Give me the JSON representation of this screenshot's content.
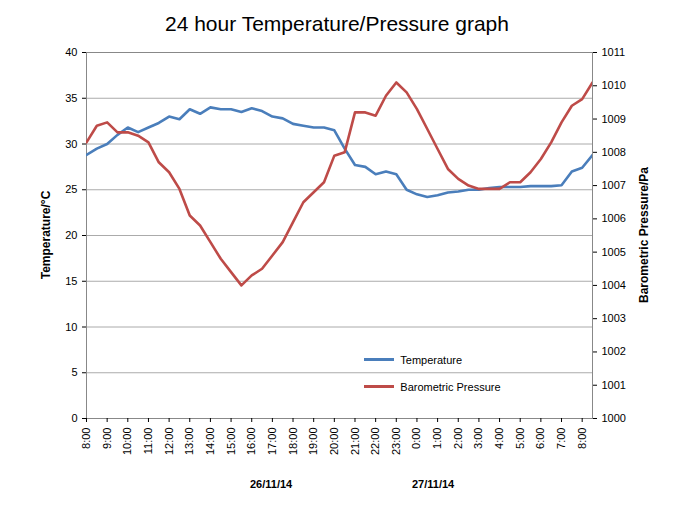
{
  "chart_data": {
    "type": "line",
    "title": "24 hour Temperature/Pressure graph",
    "y_label": "Temperature/°C",
    "y2_label": "Barometric Pressure/Pa",
    "annotations": [
      "26/11/14",
      "27/11/14"
    ],
    "x": [
      0,
      0.5,
      1,
      1.5,
      2,
      2.5,
      3,
      3.5,
      4,
      4.5,
      5,
      5.5,
      6,
      6.5,
      7,
      7.5,
      8,
      8.5,
      9,
      9.5,
      10,
      10.5,
      11,
      11.5,
      12,
      12.5,
      13,
      13.5,
      14,
      14.5,
      15,
      15.5,
      16,
      16.5,
      17,
      17.5,
      18,
      18.5,
      19,
      19.5,
      20,
      20.5,
      21,
      21.5,
      22,
      22.5,
      23,
      23.5,
      24,
      24.5
    ],
    "xlim": [
      0,
      24.5
    ],
    "xticks": [
      {
        "value": 0,
        "label": "8:00"
      },
      {
        "value": 1,
        "label": "9:00"
      },
      {
        "value": 2,
        "label": "10:00"
      },
      {
        "value": 3,
        "label": "11:00"
      },
      {
        "value": 4,
        "label": "12:00"
      },
      {
        "value": 5,
        "label": "13:00"
      },
      {
        "value": 6,
        "label": "14:00"
      },
      {
        "value": 7,
        "label": "15:00"
      },
      {
        "value": 8,
        "label": "16:00"
      },
      {
        "value": 9,
        "label": "17:00"
      },
      {
        "value": 10,
        "label": "18:00"
      },
      {
        "value": 11,
        "label": "19:00"
      },
      {
        "value": 12,
        "label": "20:00"
      },
      {
        "value": 13,
        "label": "21:00"
      },
      {
        "value": 14,
        "label": "22:00"
      },
      {
        "value": 15,
        "label": "23:00"
      },
      {
        "value": 16,
        "label": "0:00"
      },
      {
        "value": 17,
        "label": "1:00"
      },
      {
        "value": 18,
        "label": "2:00"
      },
      {
        "value": 19,
        "label": "3:00"
      },
      {
        "value": 20,
        "label": "4:00"
      },
      {
        "value": 21,
        "label": "5:00"
      },
      {
        "value": 22,
        "label": "6:00"
      },
      {
        "value": 23,
        "label": "7:00"
      },
      {
        "value": 24,
        "label": "8:00"
      }
    ],
    "ylim": [
      0,
      40
    ],
    "yticks": [
      0,
      5,
      10,
      15,
      20,
      25,
      30,
      35,
      40
    ],
    "y2lim": [
      1000,
      1011
    ],
    "y2ticks": [
      1000,
      1001,
      1002,
      1003,
      1004,
      1005,
      1006,
      1007,
      1008,
      1009,
      1010,
      1011
    ],
    "grid": true,
    "legend": "bottom",
    "series": [
      {
        "name": "Temperature",
        "color": "#4a7ebb",
        "values": [
          28.8,
          29.5,
          30.0,
          31.0,
          31.8,
          31.3,
          31.8,
          32.3,
          33.0,
          32.7,
          33.8,
          33.3,
          34.0,
          33.8,
          33.8,
          33.5,
          33.9,
          33.6,
          33.0,
          32.8,
          32.2,
          32.0,
          31.8,
          31.8,
          31.5,
          29.5,
          27.7,
          27.5,
          26.7,
          27.0,
          26.7,
          25.0,
          24.5,
          24.2,
          24.4,
          24.7,
          24.8,
          25.0,
          25.0,
          25.2,
          25.3,
          25.3,
          25.3,
          25.4,
          25.4,
          25.4,
          25.5,
          27.0,
          27.4,
          28.8
        ]
      },
      {
        "name": "Barometric Pressure",
        "color": "#be4b48",
        "axis": "y2",
        "values": [
          1008.3,
          1008.8,
          1008.9,
          1008.6,
          1008.6,
          1008.5,
          1008.3,
          1007.7,
          1007.4,
          1006.9,
          1006.1,
          1005.8,
          1005.3,
          1004.8,
          1004.4,
          1004.0,
          1004.3,
          1004.5,
          1004.9,
          1005.3,
          1005.9,
          1006.5,
          1006.8,
          1007.1,
          1007.9,
          1008.0,
          1009.2,
          1009.2,
          1009.1,
          1009.7,
          1010.1,
          1009.8,
          1009.3,
          1008.7,
          1008.1,
          1007.5,
          1007.2,
          1007.0,
          1006.9,
          1006.9,
          1006.9,
          1007.1,
          1007.1,
          1007.4,
          1007.8,
          1008.3,
          1008.9,
          1009.4,
          1009.6,
          1010.1
        ]
      }
    ]
  }
}
